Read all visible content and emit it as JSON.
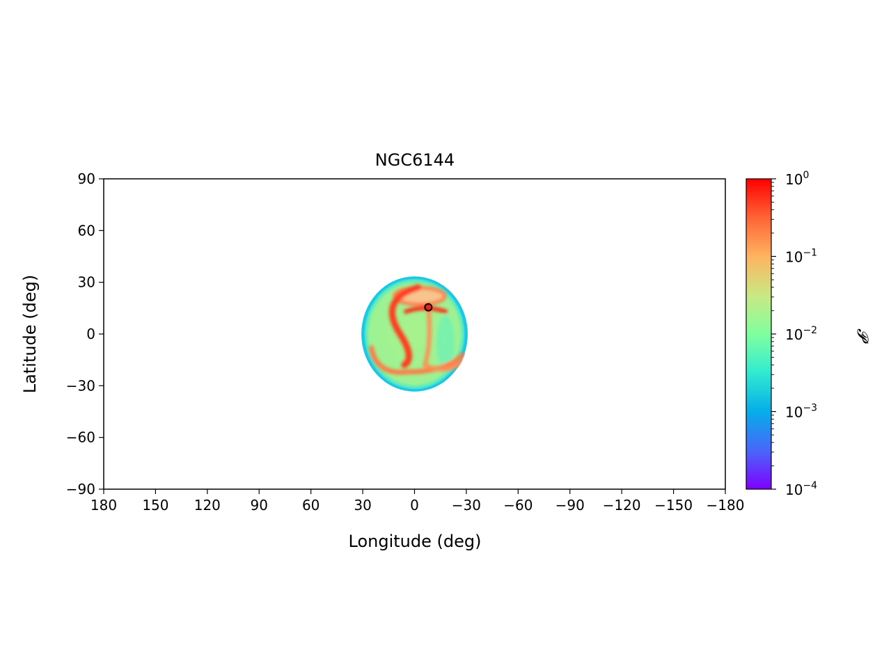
{
  "chart_data": {
    "type": "heatmap",
    "title": "NGC6144",
    "xlabel": "Longitude (deg)",
    "ylabel": "Latitude (deg)",
    "xlim": [
      180,
      -180
    ],
    "ylim": [
      -90,
      90
    ],
    "xticks": [
      180,
      150,
      120,
      90,
      60,
      30,
      0,
      -30,
      -60,
      -90,
      -120,
      -150,
      -180
    ],
    "xtick_labels": [
      "180",
      "150",
      "120",
      "90",
      "60",
      "30",
      "0",
      "−30",
      "−60",
      "−90",
      "−120",
      "−150",
      "−180"
    ],
    "yticks": [
      90,
      60,
      30,
      0,
      -30,
      -60,
      -90
    ],
    "ytick_labels": [
      "90",
      "60",
      "30",
      "0",
      "−30",
      "−60",
      "−90"
    ],
    "colorbar": {
      "label": "𝓟",
      "scale": "log",
      "min": 0.0001,
      "max": 1,
      "ticks": [
        {
          "value": 1,
          "base": "10",
          "exp": "0"
        },
        {
          "value": 0.1,
          "base": "10",
          "exp": "−1"
        },
        {
          "value": 0.01,
          "base": "10",
          "exp": "−2"
        },
        {
          "value": 0.001,
          "base": "10",
          "exp": "−3"
        },
        {
          "value": 0.0001,
          "base": "10",
          "exp": "−4"
        }
      ],
      "colormap": "rainbow"
    },
    "heatmap_region": {
      "center": [
        0,
        0
      ],
      "lon_half_width": 30,
      "lat_half_height": 33,
      "background_probability": 0.02,
      "edge_probability": 0.002,
      "features": [
        {
          "name": "upper-ring",
          "lon": -3,
          "lat": 22,
          "probability": 0.2
        },
        {
          "name": "left-arc",
          "lon": 14,
          "lat": 5,
          "probability": 0.3
        },
        {
          "name": "lower-arc",
          "lon": 4,
          "lat": -22,
          "probability": 0.25
        },
        {
          "name": "right-arc",
          "lon": -20,
          "lat": -5,
          "probability": 0.12
        },
        {
          "name": "right-patch",
          "lon": -18,
          "lat": -5,
          "probability": 0.008
        }
      ]
    },
    "marker": {
      "lon": -8,
      "lat": 15.5,
      "color": "#e8231c"
    }
  }
}
